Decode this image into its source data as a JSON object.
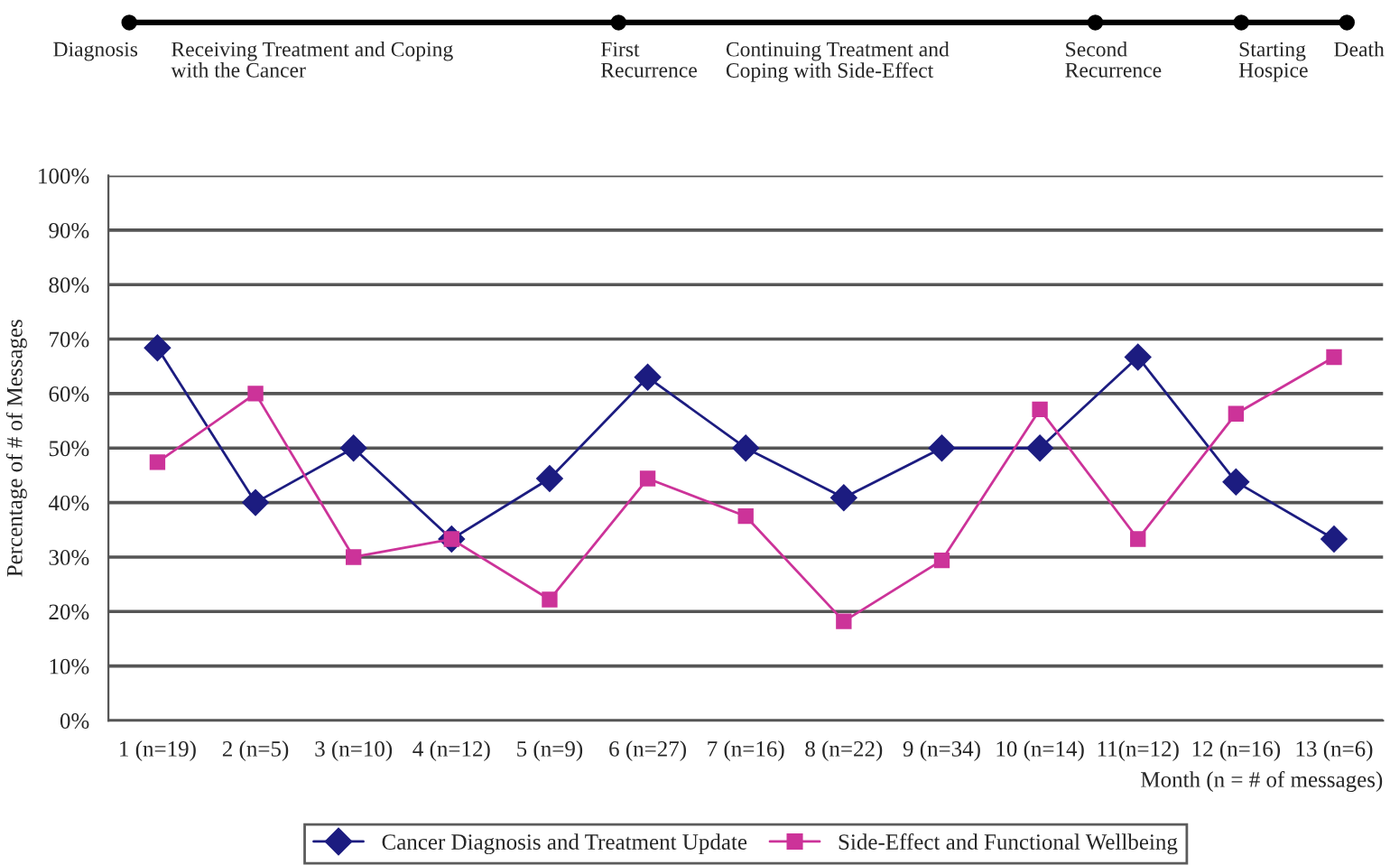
{
  "chart_data": {
    "type": "line",
    "categories": [
      "1 (n=19)",
      "2 (n=5)",
      "3 (n=10)",
      "4 (n=12)",
      "5 (n=9)",
      "6 (n=27)",
      "7 (n=16)",
      "8 (n=22)",
      "9 (n=34)",
      "10 (n=14)",
      "11(n=12)",
      "12 (n=16)",
      "13 (n=6)"
    ],
    "series": [
      {
        "name": "Cancer Diagnosis and Treatment Update",
        "color": "#1c1c80",
        "marker": "diamond",
        "values": [
          68.4,
          40,
          50,
          33.3,
          44.4,
          63,
          50,
          40.9,
          50,
          50,
          66.7,
          43.8,
          33.3
        ]
      },
      {
        "name": "Side-Effect and Functional Wellbeing",
        "color": "#cc3399",
        "marker": "square",
        "values": [
          47.4,
          60,
          30,
          33.3,
          22.2,
          44.4,
          37.5,
          18.2,
          29.4,
          57.1,
          33.3,
          56.3,
          66.7
        ]
      }
    ],
    "ylim": [
      0,
      100
    ],
    "yticks": [
      {
        "value": 0,
        "label": "0%"
      },
      {
        "value": 10,
        "label": "10%"
      },
      {
        "value": 20,
        "label": "20%"
      },
      {
        "value": 30,
        "label": "30%"
      },
      {
        "value": 40,
        "label": "40%"
      },
      {
        "value": 50,
        "label": "50%"
      },
      {
        "value": 60,
        "label": "60%"
      },
      {
        "value": 70,
        "label": "70%"
      },
      {
        "value": 80,
        "label": "80%"
      },
      {
        "value": 90,
        "label": "90%"
      },
      {
        "value": 100,
        "label": "100%"
      }
    ],
    "xlabel": "Month (n = # of messages)",
    "ylabel": "Percentage of # of Messages",
    "grid": "y",
    "legend": "bottom",
    "annotations": [
      "Diagnosis",
      "Receiving Treatment and Coping\nwith the Cancer",
      "First\nRecurrence",
      "Continuing Treatment and\nCoping with Side-Effect",
      "Second\nRecurrence",
      "Starting\nHospice",
      "Death"
    ]
  }
}
